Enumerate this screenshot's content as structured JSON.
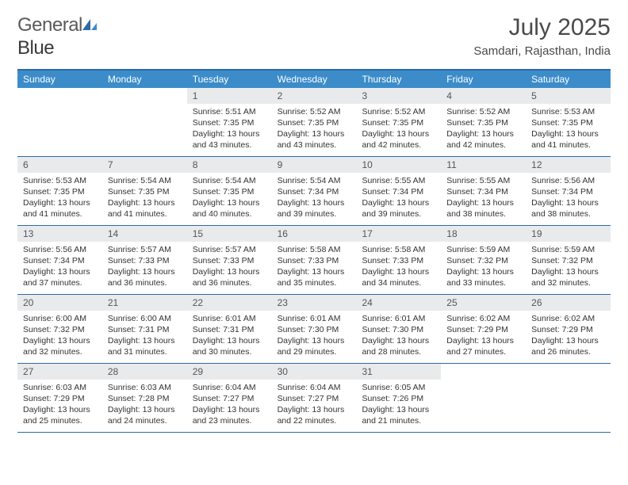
{
  "logo": {
    "text1": "General",
    "text2": "Blue"
  },
  "title": "July 2025",
  "location": "Samdari, Rajasthan, India",
  "colors": {
    "header_bg": "#3b8cc9",
    "header_border": "#2d6aa8",
    "daynum_bg": "#e9eaec",
    "text_dark": "#4a4a4a",
    "text_body": "#333333"
  },
  "day_headers": [
    "Sunday",
    "Monday",
    "Tuesday",
    "Wednesday",
    "Thursday",
    "Friday",
    "Saturday"
  ],
  "weeks": [
    [
      {
        "n": "",
        "sr": "",
        "ss": "",
        "dl": ""
      },
      {
        "n": "",
        "sr": "",
        "ss": "",
        "dl": ""
      },
      {
        "n": "1",
        "sr": "5:51 AM",
        "ss": "7:35 PM",
        "dl": "13 hours and 43 minutes."
      },
      {
        "n": "2",
        "sr": "5:52 AM",
        "ss": "7:35 PM",
        "dl": "13 hours and 43 minutes."
      },
      {
        "n": "3",
        "sr": "5:52 AM",
        "ss": "7:35 PM",
        "dl": "13 hours and 42 minutes."
      },
      {
        "n": "4",
        "sr": "5:52 AM",
        "ss": "7:35 PM",
        "dl": "13 hours and 42 minutes."
      },
      {
        "n": "5",
        "sr": "5:53 AM",
        "ss": "7:35 PM",
        "dl": "13 hours and 41 minutes."
      }
    ],
    [
      {
        "n": "6",
        "sr": "5:53 AM",
        "ss": "7:35 PM",
        "dl": "13 hours and 41 minutes."
      },
      {
        "n": "7",
        "sr": "5:54 AM",
        "ss": "7:35 PM",
        "dl": "13 hours and 41 minutes."
      },
      {
        "n": "8",
        "sr": "5:54 AM",
        "ss": "7:35 PM",
        "dl": "13 hours and 40 minutes."
      },
      {
        "n": "9",
        "sr": "5:54 AM",
        "ss": "7:34 PM",
        "dl": "13 hours and 39 minutes."
      },
      {
        "n": "10",
        "sr": "5:55 AM",
        "ss": "7:34 PM",
        "dl": "13 hours and 39 minutes."
      },
      {
        "n": "11",
        "sr": "5:55 AM",
        "ss": "7:34 PM",
        "dl": "13 hours and 38 minutes."
      },
      {
        "n": "12",
        "sr": "5:56 AM",
        "ss": "7:34 PM",
        "dl": "13 hours and 38 minutes."
      }
    ],
    [
      {
        "n": "13",
        "sr": "5:56 AM",
        "ss": "7:34 PM",
        "dl": "13 hours and 37 minutes."
      },
      {
        "n": "14",
        "sr": "5:57 AM",
        "ss": "7:33 PM",
        "dl": "13 hours and 36 minutes."
      },
      {
        "n": "15",
        "sr": "5:57 AM",
        "ss": "7:33 PM",
        "dl": "13 hours and 36 minutes."
      },
      {
        "n": "16",
        "sr": "5:58 AM",
        "ss": "7:33 PM",
        "dl": "13 hours and 35 minutes."
      },
      {
        "n": "17",
        "sr": "5:58 AM",
        "ss": "7:33 PM",
        "dl": "13 hours and 34 minutes."
      },
      {
        "n": "18",
        "sr": "5:59 AM",
        "ss": "7:32 PM",
        "dl": "13 hours and 33 minutes."
      },
      {
        "n": "19",
        "sr": "5:59 AM",
        "ss": "7:32 PM",
        "dl": "13 hours and 32 minutes."
      }
    ],
    [
      {
        "n": "20",
        "sr": "6:00 AM",
        "ss": "7:32 PM",
        "dl": "13 hours and 32 minutes."
      },
      {
        "n": "21",
        "sr": "6:00 AM",
        "ss": "7:31 PM",
        "dl": "13 hours and 31 minutes."
      },
      {
        "n": "22",
        "sr": "6:01 AM",
        "ss": "7:31 PM",
        "dl": "13 hours and 30 minutes."
      },
      {
        "n": "23",
        "sr": "6:01 AM",
        "ss": "7:30 PM",
        "dl": "13 hours and 29 minutes."
      },
      {
        "n": "24",
        "sr": "6:01 AM",
        "ss": "7:30 PM",
        "dl": "13 hours and 28 minutes."
      },
      {
        "n": "25",
        "sr": "6:02 AM",
        "ss": "7:29 PM",
        "dl": "13 hours and 27 minutes."
      },
      {
        "n": "26",
        "sr": "6:02 AM",
        "ss": "7:29 PM",
        "dl": "13 hours and 26 minutes."
      }
    ],
    [
      {
        "n": "27",
        "sr": "6:03 AM",
        "ss": "7:29 PM",
        "dl": "13 hours and 25 minutes."
      },
      {
        "n": "28",
        "sr": "6:03 AM",
        "ss": "7:28 PM",
        "dl": "13 hours and 24 minutes."
      },
      {
        "n": "29",
        "sr": "6:04 AM",
        "ss": "7:27 PM",
        "dl": "13 hours and 23 minutes."
      },
      {
        "n": "30",
        "sr": "6:04 AM",
        "ss": "7:27 PM",
        "dl": "13 hours and 22 minutes."
      },
      {
        "n": "31",
        "sr": "6:05 AM",
        "ss": "7:26 PM",
        "dl": "13 hours and 21 minutes."
      },
      {
        "n": "",
        "sr": "",
        "ss": "",
        "dl": ""
      },
      {
        "n": "",
        "sr": "",
        "ss": "",
        "dl": ""
      }
    ]
  ],
  "labels": {
    "sunrise": "Sunrise:",
    "sunset": "Sunset:",
    "daylight": "Daylight:"
  }
}
